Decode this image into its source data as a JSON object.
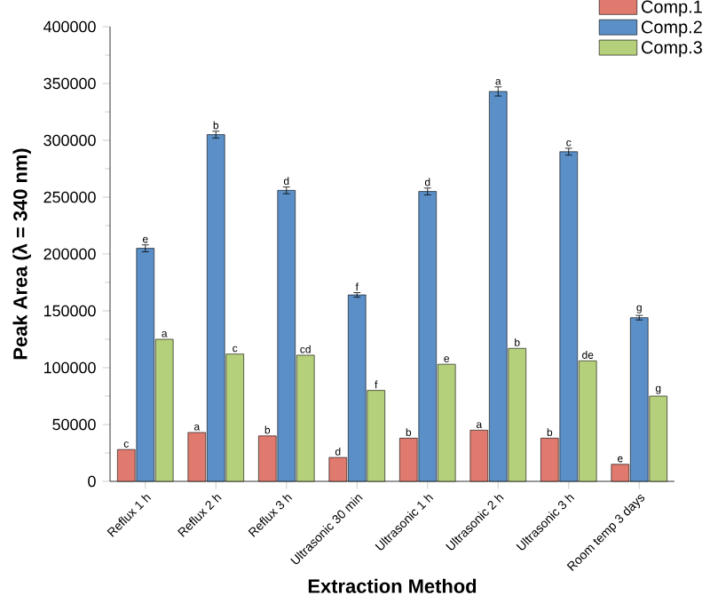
{
  "chart_data": {
    "type": "bar",
    "xlabel": "Extraction Method",
    "ylabel": "Peak Area (λ = 340 nm)",
    "categories": [
      "Reflux 1 h",
      "Reflux 2 h",
      "Reflux 3 h",
      "Ultrasonic 30 min",
      "Ultrasonic 1 h",
      "Ultrasonic 2 h",
      "Ultrasonic 3 h",
      "Room temp 3 days"
    ],
    "series": [
      {
        "name": "Comp.1",
        "color": "#e07a6e",
        "values": [
          28000,
          43000,
          40000,
          21000,
          38000,
          45000,
          38000,
          15000
        ],
        "value_labels": [
          "c",
          "a",
          "b",
          "d",
          "b",
          "a",
          "b",
          "e"
        ]
      },
      {
        "name": "Comp.2",
        "color": "#5b8fc7",
        "values": [
          205000,
          305000,
          256000,
          164000,
          255000,
          343000,
          290000,
          144000
        ],
        "errors": [
          3000,
          3000,
          3000,
          2000,
          3000,
          4000,
          3000,
          2000
        ],
        "value_labels": [
          "e",
          "b",
          "d",
          "f",
          "d",
          "a",
          "c",
          "g"
        ]
      },
      {
        "name": "Comp.3",
        "color": "#b5d07a",
        "values": [
          125000,
          112000,
          111000,
          80000,
          103000,
          117000,
          106000,
          75000
        ],
        "value_labels": [
          "a",
          "c",
          "cd",
          "f",
          "e",
          "b",
          "de",
          "g"
        ]
      }
    ],
    "ylim": [
      0,
      400000
    ],
    "yticks": [
      0,
      50000,
      100000,
      150000,
      200000,
      250000,
      300000,
      350000,
      400000
    ],
    "legend": "top right"
  }
}
